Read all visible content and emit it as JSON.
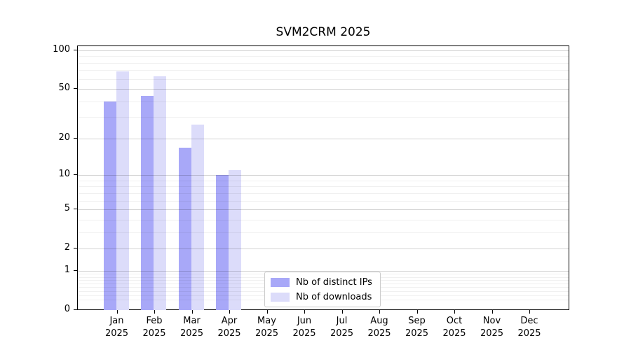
{
  "chart_data": {
    "type": "bar",
    "title": "SVM2CRM 2025",
    "categories": [
      "Jan",
      "Feb",
      "Mar",
      "Apr",
      "May",
      "Jun",
      "Jul",
      "Aug",
      "Sep",
      "Oct",
      "Nov",
      "Dec"
    ],
    "category_year": "2025",
    "series": [
      {
        "name": "Nb of distinct IPs",
        "color": "#a8a8f8",
        "values": [
          40,
          44,
          17,
          10,
          0,
          0,
          0,
          0,
          0,
          0,
          0,
          0
        ]
      },
      {
        "name": "Nb of downloads",
        "color": "#dcdcfa",
        "values": [
          69,
          63,
          26,
          11,
          0,
          0,
          0,
          0,
          0,
          0,
          0,
          0
        ]
      }
    ],
    "y_axis": {
      "scale": "log1p",
      "tick_values": [
        100,
        50,
        20,
        10,
        5,
        2,
        1,
        0
      ],
      "tick_labels": [
        "100",
        "50",
        "20",
        "10",
        "5",
        "2",
        "1",
        "0"
      ],
      "minor_gridline_values": [
        0.2,
        0.3,
        0.4,
        0.5,
        0.6,
        0.7,
        0.8,
        0.9,
        3,
        4,
        6,
        7,
        8,
        9,
        30,
        40,
        60,
        70,
        80,
        90
      ],
      "range": [
        0,
        105
      ]
    },
    "grid": "on",
    "legend_position": "lower center",
    "colors": {
      "axis": "#000000",
      "background": "#ffffff",
      "major_grid": "#d4d4d4",
      "minor_grid": "#ededed"
    }
  }
}
